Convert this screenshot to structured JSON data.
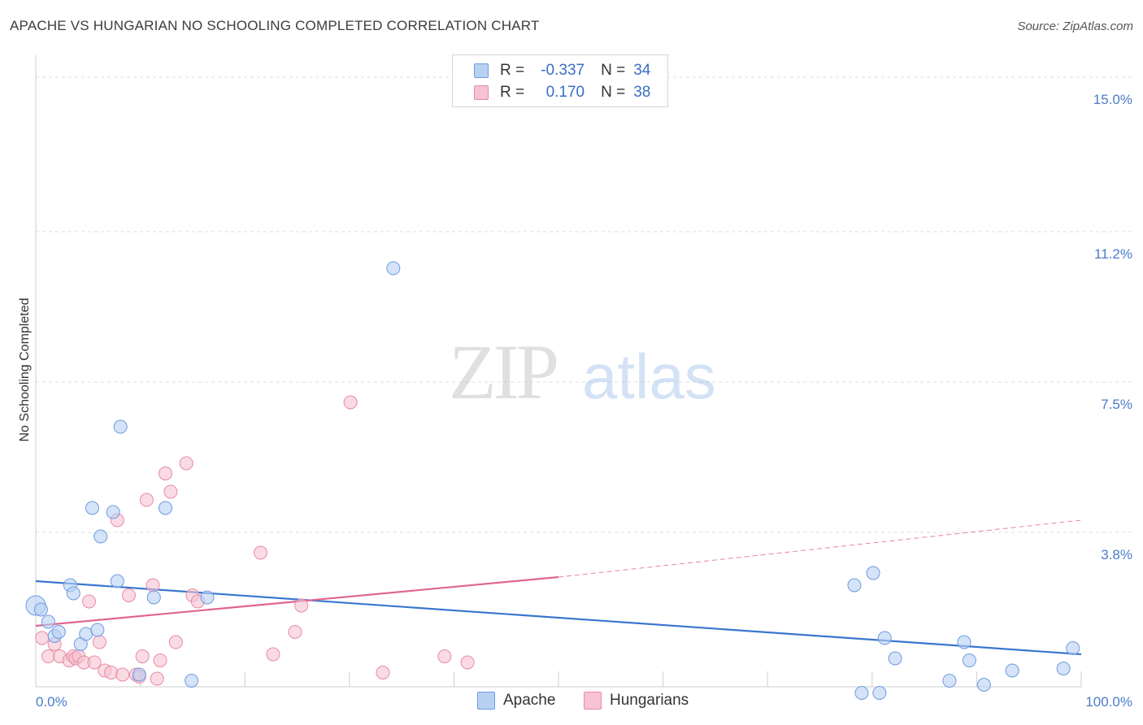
{
  "title": "APACHE VS HUNGARIAN NO SCHOOLING COMPLETED CORRELATION CHART",
  "source": "Source: ZipAtlas.com",
  "watermark": {
    "zip": "ZIP",
    "atlas": "atlas"
  },
  "legend": {
    "r_label": "R =",
    "n_label": "N =",
    "rows": [
      {
        "r": "-0.337",
        "n": "34"
      },
      {
        "r": "0.170",
        "n": "38"
      }
    ]
  },
  "colors": {
    "apache_fill": "#b8d1f3",
    "apache_stroke": "#6f9be0",
    "apache_line": "#3a76d0",
    "hung_fill": "#f7c3d2",
    "hung_stroke": "#e88aa6",
    "hung_line": "#e06690",
    "tick": "#4a7cc9",
    "grid": "#dcdcdc"
  },
  "chart_data": {
    "type": "scatter",
    "title": "APACHE VS HUNGARIAN NO SCHOOLING COMPLETED CORRELATION CHART",
    "xlabel": "",
    "ylabel": "No Schooling Completed",
    "xlim": [
      0,
      100
    ],
    "ylim": [
      0,
      15
    ],
    "x_tick_labels": [
      "0.0%",
      "100.0%"
    ],
    "y_ticks": [
      3.8,
      7.5,
      11.2,
      15.0
    ],
    "y_tick_labels": [
      "3.8%",
      "7.5%",
      "11.2%",
      "15.0%"
    ],
    "series": [
      {
        "name": "Apache",
        "r": -0.337,
        "n": 34,
        "trend": {
          "x0": 0,
          "y0": 2.6,
          "x1": 100,
          "y1": 0.8
        },
        "points": [
          [
            0,
            2.0
          ],
          [
            0.5,
            1.9
          ],
          [
            1.2,
            1.6
          ],
          [
            1.8,
            1.25
          ],
          [
            2.2,
            1.35
          ],
          [
            3.3,
            2.5
          ],
          [
            3.6,
            2.3
          ],
          [
            4.3,
            1.05
          ],
          [
            4.8,
            1.3
          ],
          [
            5.4,
            4.4
          ],
          [
            5.9,
            1.4
          ],
          [
            6.2,
            3.7
          ],
          [
            7.4,
            4.3
          ],
          [
            7.8,
            2.6
          ],
          [
            8.1,
            6.4
          ],
          [
            9.9,
            0.3
          ],
          [
            11.3,
            2.2
          ],
          [
            12.4,
            4.4
          ],
          [
            14.9,
            0.15
          ],
          [
            16.4,
            2.2
          ],
          [
            34.2,
            10.3
          ],
          [
            78.3,
            2.5
          ],
          [
            79.0,
            -0.15
          ],
          [
            80.1,
            2.8
          ],
          [
            80.7,
            -0.15
          ],
          [
            81.2,
            1.2
          ],
          [
            82.2,
            0.7
          ],
          [
            87.4,
            0.15
          ],
          [
            88.8,
            1.1
          ],
          [
            89.3,
            0.65
          ],
          [
            90.7,
            0.05
          ],
          [
            93.4,
            0.4
          ],
          [
            98.3,
            0.45
          ],
          [
            99.2,
            0.95
          ]
        ]
      },
      {
        "name": "Hungarians",
        "r": 0.17,
        "n": 38,
        "trend_solid": {
          "x0": 0,
          "y0": 1.5,
          "x1": 50,
          "y1": 2.7
        },
        "trend_dashed": {
          "x0": 50,
          "y0": 2.7,
          "x1": 100,
          "y1": 4.1
        },
        "points": [
          [
            0.6,
            1.2
          ],
          [
            1.2,
            0.75
          ],
          [
            1.8,
            1.05
          ],
          [
            2.3,
            0.75
          ],
          [
            3.2,
            0.65
          ],
          [
            3.6,
            0.75
          ],
          [
            3.8,
            0.7
          ],
          [
            4.1,
            0.75
          ],
          [
            4.6,
            0.6
          ],
          [
            5.1,
            2.1
          ],
          [
            5.6,
            0.6
          ],
          [
            6.1,
            1.1
          ],
          [
            6.6,
            0.4
          ],
          [
            7.2,
            0.35
          ],
          [
            7.8,
            4.1
          ],
          [
            8.3,
            0.3
          ],
          [
            8.9,
            2.25
          ],
          [
            9.6,
            0.3
          ],
          [
            9.9,
            0.25
          ],
          [
            10.2,
            0.75
          ],
          [
            10.6,
            4.6
          ],
          [
            11.2,
            2.5
          ],
          [
            11.6,
            0.2
          ],
          [
            11.9,
            0.65
          ],
          [
            12.4,
            5.25
          ],
          [
            12.9,
            4.8
          ],
          [
            13.4,
            1.1
          ],
          [
            14.4,
            5.5
          ],
          [
            15.0,
            2.25
          ],
          [
            15.5,
            2.1
          ],
          [
            21.5,
            3.3
          ],
          [
            22.7,
            0.8
          ],
          [
            24.8,
            1.35
          ],
          [
            25.4,
            2.0
          ],
          [
            30.1,
            7.0
          ],
          [
            33.2,
            0.35
          ],
          [
            39.1,
            0.75
          ],
          [
            41.3,
            0.6
          ]
        ]
      }
    ]
  }
}
